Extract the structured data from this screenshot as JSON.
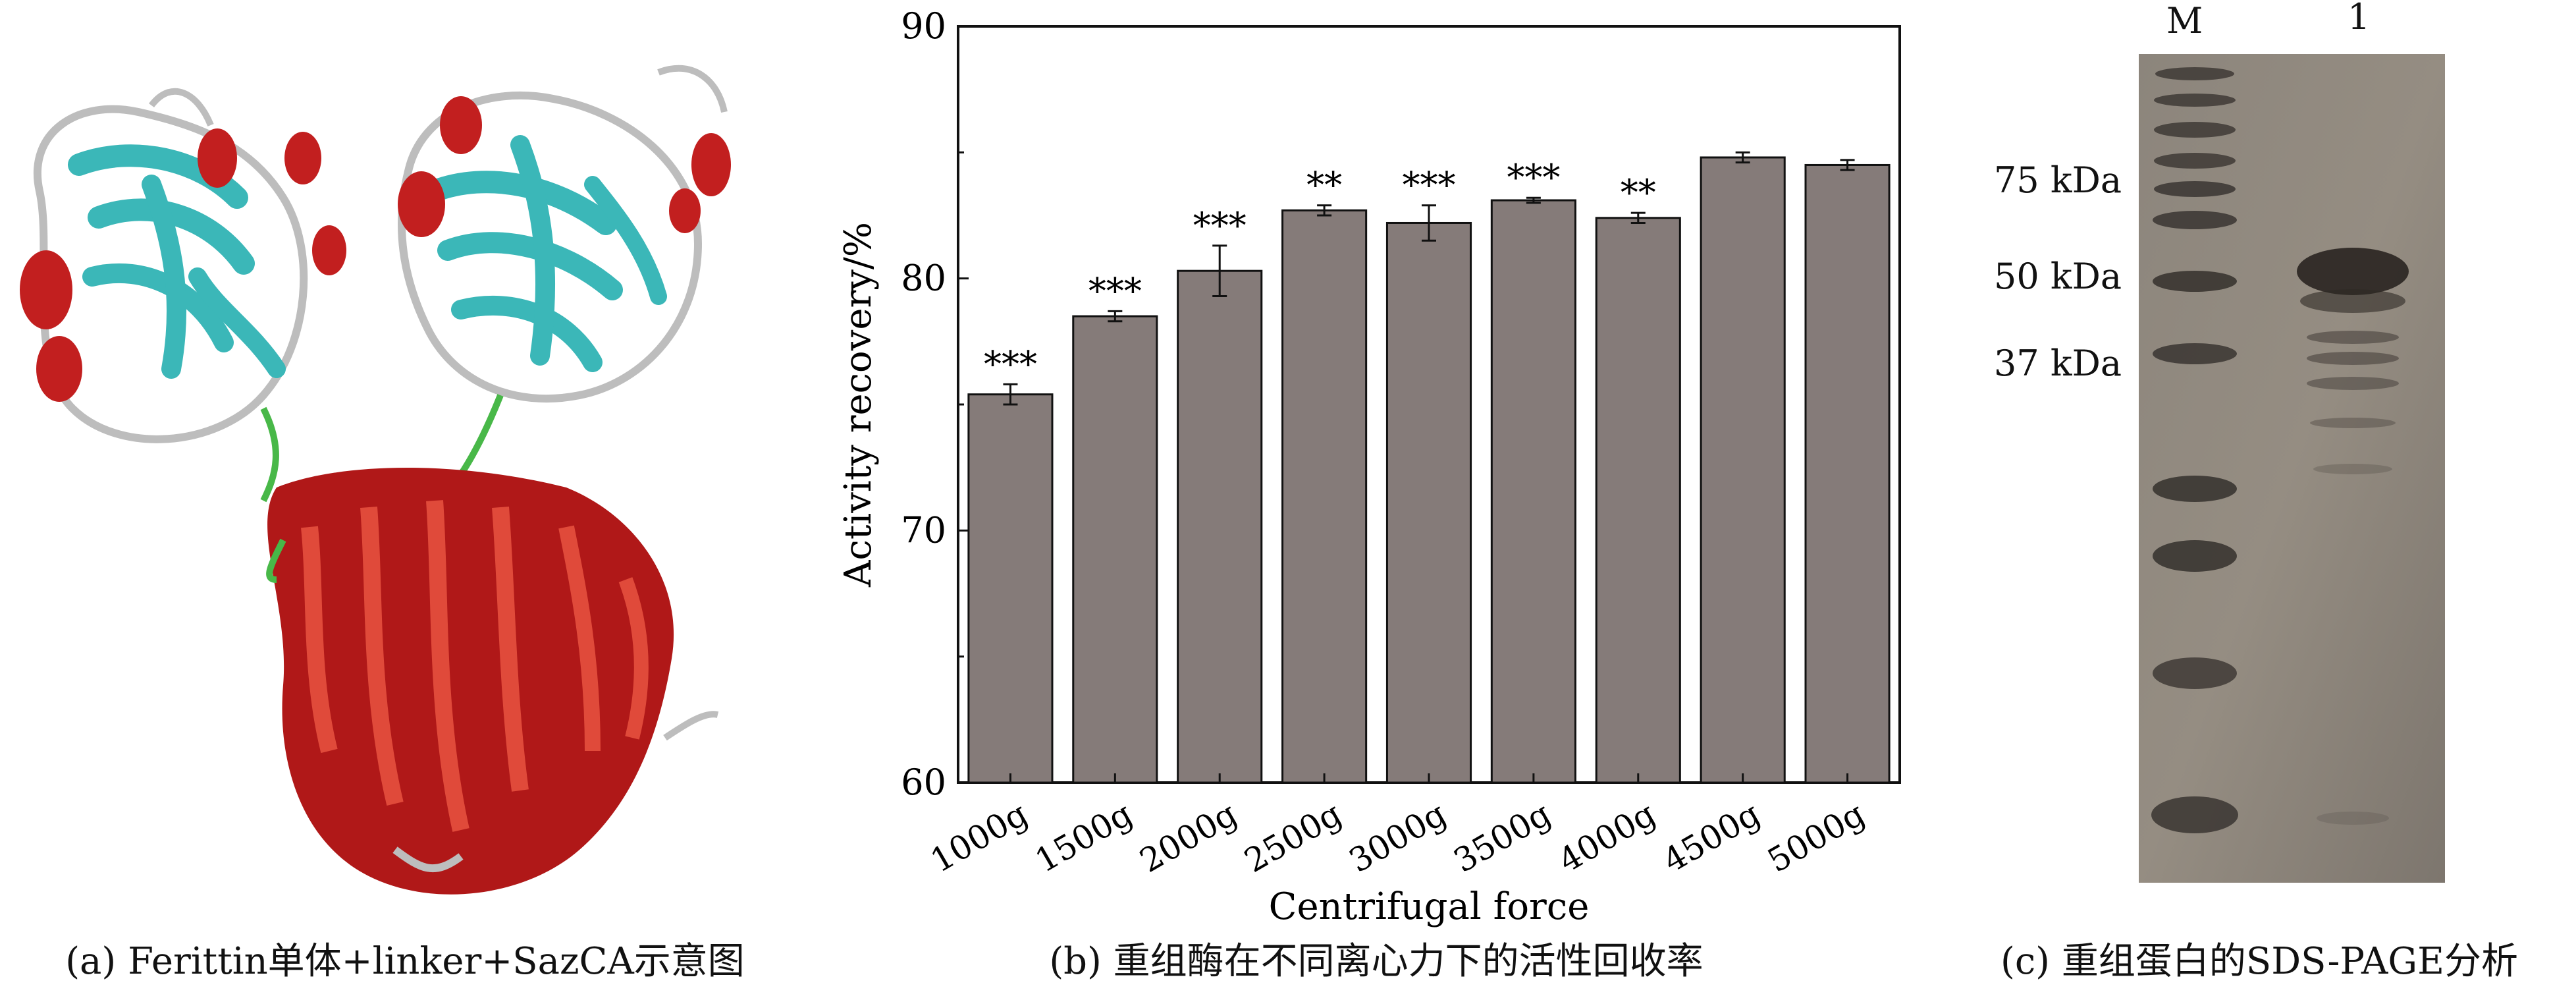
{
  "panels": {
    "a": {
      "caption": "(a) Ferittin单体+linker+SazCA示意图"
    },
    "b": {
      "caption": "(b) 重组酶在不同离心力下的活性回收率"
    },
    "c": {
      "caption": "(c) 重组蛋白的SDS-PAGE分析",
      "lane_labels": [
        "M",
        "1"
      ],
      "marker_labels": [
        "75 kDa",
        "50 kDa",
        "37 kDa"
      ]
    }
  },
  "chart_data": {
    "type": "bar",
    "title": "",
    "xlabel": "Centrifugal force",
    "ylabel": "Activity recovery/%",
    "ylim": [
      60,
      90
    ],
    "yticks": [
      60,
      70,
      80,
      90
    ],
    "categories": [
      "1000g",
      "1500g",
      "2000g",
      "2500g",
      "3000g",
      "3500g",
      "4000g",
      "4500g",
      "5000g"
    ],
    "values": [
      75.4,
      78.5,
      80.3,
      82.7,
      82.2,
      83.1,
      82.4,
      84.8,
      84.5
    ],
    "errors": [
      0.4,
      0.2,
      1.0,
      0.2,
      0.7,
      0.1,
      0.2,
      0.2,
      0.2
    ],
    "significance": [
      "***",
      "***",
      "***",
      "**",
      "***",
      "***",
      "**",
      "",
      ""
    ],
    "bar_color": "#857b79",
    "grid": false,
    "legend": "none"
  }
}
